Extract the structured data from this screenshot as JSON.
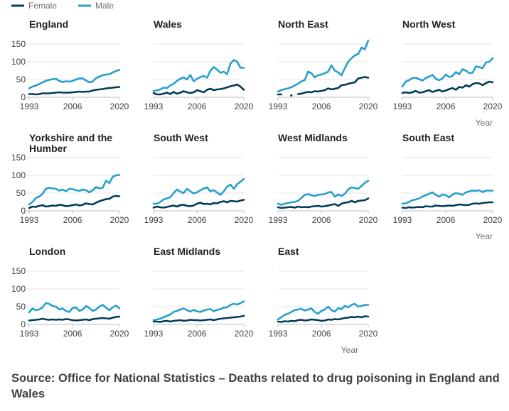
{
  "legend": [
    {
      "label": "Female",
      "color": "#003c57"
    },
    {
      "label": "Male",
      "color": "#27a0cc"
    }
  ],
  "x_axis_label": "Year",
  "source_text": "Source: Office for National Statistics – Deaths related to drug poisoning in England and Wales",
  "chart_data": {
    "type": "line",
    "x": [
      1993,
      1994,
      1995,
      1996,
      1997,
      1998,
      1999,
      2000,
      2001,
      2002,
      2003,
      2004,
      2005,
      2006,
      2007,
      2008,
      2009,
      2010,
      2011,
      2012,
      2013,
      2014,
      2015,
      2016,
      2017,
      2018,
      2019,
      2020
    ],
    "xticks": [
      "1993",
      "2006",
      "2020"
    ],
    "yticks": [
      "0",
      "50",
      "100",
      "150"
    ],
    "ylim": [
      0,
      160
    ],
    "xlabel": "Year",
    "grid": true,
    "legend_position": "top-left",
    "panels": [
      {
        "title": "England",
        "Female": [
          9,
          9,
          8,
          9,
          11,
          11,
          11,
          12,
          13,
          14,
          13,
          13,
          13,
          14,
          15,
          16,
          15,
          16,
          16,
          19,
          21,
          22,
          23,
          25,
          26,
          27,
          28,
          29
        ],
        "Male": [
          25,
          30,
          33,
          37,
          42,
          46,
          49,
          51,
          52,
          46,
          43,
          45,
          44,
          46,
          50,
          53,
          53,
          47,
          42,
          44,
          54,
          58,
          62,
          64,
          65,
          70,
          74,
          77
        ]
      },
      {
        "title": "Wales",
        "Female": [
          12,
          8,
          8,
          10,
          13,
          9,
          15,
          10,
          13,
          17,
          14,
          12,
          14,
          20,
          17,
          14,
          21,
          24,
          20,
          22,
          23,
          25,
          28,
          31,
          33,
          36,
          30,
          21
        ],
        "Male": [
          18,
          19,
          22,
          27,
          26,
          33,
          38,
          46,
          52,
          56,
          50,
          63,
          45,
          52,
          57,
          60,
          55,
          75,
          85,
          78,
          69,
          72,
          65,
          95,
          105,
          100,
          83,
          83
        ]
      },
      {
        "title": "North East",
        "Female": [
          8,
          8,
          null,
          null,
          5,
          null,
          9,
          10,
          13,
          15,
          14,
          17,
          16,
          18,
          20,
          25,
          22,
          24,
          26,
          34,
          35,
          38,
          40,
          42,
          53,
          55,
          57,
          55
        ],
        "Male": [
          16,
          20,
          23,
          25,
          28,
          33,
          38,
          45,
          48,
          72,
          68,
          56,
          62,
          64,
          68,
          72,
          90,
          75,
          70,
          62,
          82,
          100,
          110,
          118,
          122,
          140,
          135,
          160
        ]
      },
      {
        "title": "North West",
        "Female": [
          12,
          14,
          12,
          14,
          18,
          13,
          14,
          17,
          20,
          15,
          18,
          21,
          16,
          19,
          23,
          26,
          21,
          29,
          27,
          34,
          30,
          37,
          40,
          39,
          34,
          40,
          44,
          42
        ],
        "Male": [
          30,
          44,
          48,
          54,
          55,
          51,
          47,
          54,
          58,
          63,
          52,
          48,
          53,
          64,
          57,
          60,
          71,
          65,
          79,
          75,
          68,
          69,
          87,
          85,
          82,
          98,
          100,
          110
        ]
      },
      {
        "title": "Yorkshire and the Humber",
        "Female": [
          8,
          12,
          11,
          14,
          16,
          12,
          13,
          15,
          14,
          17,
          16,
          13,
          14,
          16,
          18,
          15,
          17,
          21,
          19,
          18,
          23,
          27,
          30,
          33,
          34,
          40,
          42,
          41
        ],
        "Male": [
          18,
          25,
          36,
          40,
          48,
          62,
          65,
          63,
          62,
          57,
          60,
          55,
          62,
          61,
          58,
          56,
          60,
          58,
          52,
          58,
          67,
          63,
          65,
          85,
          78,
          96,
          100,
          101
        ]
      },
      {
        "title": "South West",
        "Female": [
          9,
          12,
          10,
          9,
          11,
          13,
          15,
          12,
          16,
          17,
          14,
          13,
          15,
          20,
          23,
          19,
          20,
          18,
          22,
          21,
          25,
          27,
          24,
          28,
          27,
          26,
          29,
          31
        ],
        "Male": [
          20,
          20,
          25,
          32,
          35,
          38,
          50,
          60,
          54,
          50,
          62,
          55,
          49,
          52,
          58,
          63,
          66,
          55,
          58,
          52,
          45,
          55,
          68,
          74,
          62,
          75,
          82,
          90
        ]
      },
      {
        "title": "West Midlands",
        "Female": [
          10,
          8,
          9,
          10,
          11,
          9,
          12,
          10,
          11,
          10,
          12,
          13,
          14,
          12,
          13,
          15,
          17,
          19,
          14,
          20,
          23,
          24,
          28,
          24,
          28,
          29,
          30,
          35
        ],
        "Male": [
          20,
          17,
          20,
          22,
          24,
          25,
          28,
          36,
          45,
          47,
          44,
          42,
          45,
          46,
          47,
          52,
          53,
          40,
          46,
          42,
          48,
          60,
          66,
          64,
          62,
          70,
          79,
          85
        ]
      },
      {
        "title": "South East",
        "Female": [
          9,
          8,
          10,
          9,
          10,
          11,
          10,
          13,
          12,
          12,
          15,
          14,
          13,
          14,
          15,
          14,
          16,
          18,
          17,
          16,
          17,
          20,
          21,
          20,
          22,
          23,
          24,
          24
        ],
        "Male": [
          20,
          21,
          25,
          30,
          32,
          35,
          40,
          44,
          48,
          52,
          45,
          40,
          46,
          44,
          38,
          46,
          50,
          48,
          45,
          52,
          55,
          57,
          56,
          58,
          53,
          57,
          57,
          57
        ]
      },
      {
        "title": "London",
        "Female": [
          11,
          12,
          13,
          14,
          16,
          14,
          13,
          14,
          13,
          14,
          13,
          15,
          14,
          12,
          11,
          12,
          13,
          14,
          12,
          15,
          16,
          17,
          18,
          17,
          16,
          19,
          21,
          22
        ],
        "Male": [
          34,
          45,
          40,
          42,
          48,
          60,
          58,
          52,
          50,
          42,
          45,
          38,
          35,
          46,
          48,
          38,
          42,
          52,
          46,
          38,
          42,
          50,
          55,
          47,
          40,
          48,
          53,
          45
        ]
      },
      {
        "title": "East Midlands",
        "Female": [
          8,
          8,
          7,
          9,
          10,
          8,
          10,
          11,
          12,
          10,
          11,
          13,
          12,
          12,
          11,
          12,
          13,
          14,
          12,
          14,
          16,
          17,
          18,
          19,
          20,
          21,
          22,
          24
        ],
        "Male": [
          12,
          14,
          16,
          20,
          24,
          28,
          35,
          38,
          42,
          45,
          40,
          36,
          41,
          37,
          35,
          39,
          42,
          43,
          37,
          41,
          43,
          47,
          48,
          55,
          58,
          56,
          60,
          65
        ]
      },
      {
        "title": "East",
        "Female": [
          8,
          7,
          9,
          8,
          10,
          9,
          12,
          13,
          11,
          12,
          14,
          13,
          12,
          10,
          11,
          14,
          13,
          15,
          14,
          16,
          18,
          19,
          21,
          20,
          22,
          20,
          23,
          22
        ],
        "Male": [
          14,
          20,
          27,
          30,
          35,
          40,
          42,
          44,
          39,
          42,
          45,
          35,
          30,
          38,
          42,
          50,
          40,
          36,
          46,
          43,
          52,
          48,
          55,
          58,
          50,
          52,
          55,
          55
        ]
      }
    ]
  }
}
